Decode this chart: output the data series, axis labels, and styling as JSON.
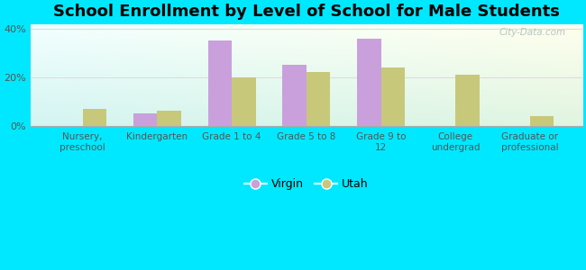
{
  "title": "School Enrollment by Level of School for Male Students",
  "categories": [
    "Nursery,\npreschool",
    "Kindergarten",
    "Grade 1 to 4",
    "Grade 5 to 8",
    "Grade 9 to\n12",
    "College\nundergrad",
    "Graduate or\nprofessional"
  ],
  "virgin_values": [
    0,
    5,
    35,
    25,
    36,
    0,
    0
  ],
  "utah_values": [
    7,
    6,
    20,
    22,
    24,
    21,
    4
  ],
  "virgin_color": "#c9a0dc",
  "utah_color": "#c8c87a",
  "background_outer": "#00e8ff",
  "ylim": [
    0,
    42
  ],
  "yticks": [
    0,
    20,
    40
  ],
  "ytick_labels": [
    "0%",
    "20%",
    "40%"
  ],
  "bar_width": 0.32,
  "legend_labels": [
    "Virgin",
    "Utah"
  ],
  "title_fontsize": 13,
  "watermark": "City-Data.com"
}
